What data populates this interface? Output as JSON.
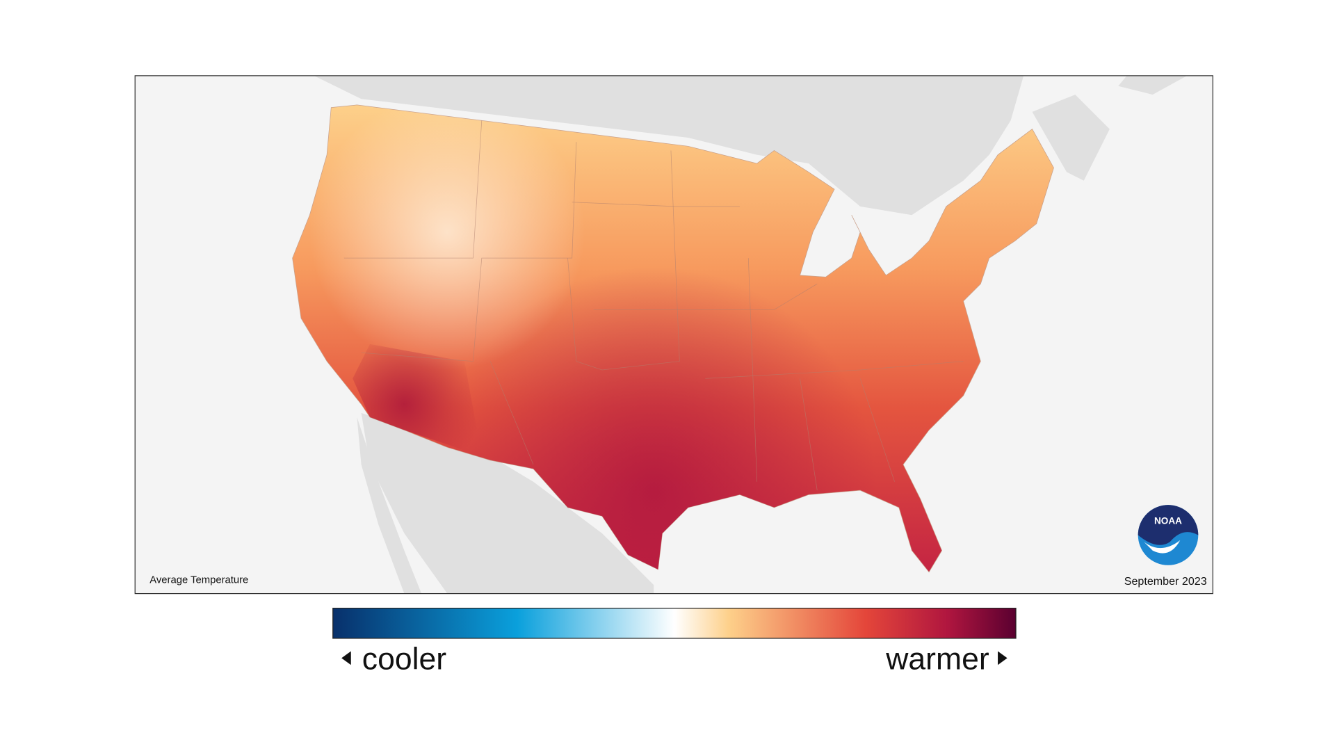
{
  "map": {
    "title": "Average Temperature",
    "date": "September 2023",
    "logo": "NOAA",
    "legend": {
      "low_label": "cooler",
      "high_label": "warmer"
    }
  }
}
